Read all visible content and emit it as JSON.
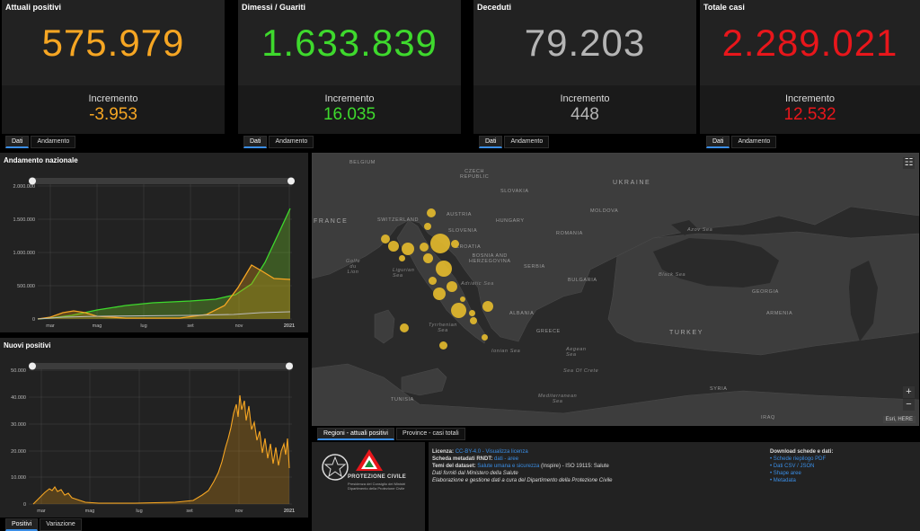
{
  "kpis": [
    {
      "title": "Attuali positivi",
      "value": "575.979",
      "increment_label": "Incremento",
      "increment": "-3.953",
      "color": "#f6a623"
    },
    {
      "title": "Dimessi / Guariti",
      "value": "1.633.839",
      "increment_label": "Incremento",
      "increment": "16.035",
      "color": "#3ed92d"
    },
    {
      "title": "Deceduti",
      "value": "79.203",
      "increment_label": "Incremento",
      "increment": "448",
      "color": "#b5b5b5"
    },
    {
      "title": "Totale casi",
      "value": "2.289.021",
      "increment_label": "Incremento",
      "increment": "12.532",
      "color": "#e8161b"
    }
  ],
  "kpi_tabs": {
    "dati": "Dati",
    "andamento": "Andamento"
  },
  "chart_national": {
    "title": "Andamento nazionale",
    "y_ticks": [
      "2.000.000",
      "1.500.000",
      "1.000.000",
      "500.000",
      "0"
    ],
    "x_ticks": [
      "mar",
      "mag",
      "lug",
      "set",
      "nov",
      "2021"
    ]
  },
  "chart_new": {
    "title": "Nuovi positivi",
    "y_ticks": [
      "50.000",
      "40.000",
      "30.000",
      "20.000",
      "10.000",
      "0"
    ],
    "x_ticks": [
      "mar",
      "mag",
      "lug",
      "set",
      "nov",
      "2021"
    ]
  },
  "chart_tabs": {
    "positivi": "Positivi",
    "variazione": "Variazione"
  },
  "map": {
    "labels": {
      "belgium": "BELGIUM",
      "czech": "CZECH\nREPUBLIC",
      "slovakia": "SLOVAKIA",
      "ukraine": "UKRAINE",
      "france": "FRANCE",
      "switzerland": "SWITZERLAND",
      "austria": "AUSTRIA",
      "hungary": "HUNGARY",
      "moldova": "MOLDOVA",
      "slovenia": "SLOVENIA",
      "croatia": "CROATIA",
      "romania": "ROMANIA",
      "bosnia": "BOSNIA AND\nHERZEGOVINA",
      "serbia": "SERBIA",
      "bulgaria": "BULGARIA",
      "albania": "ALBANIA",
      "greece": "GREECE",
      "turkey": "TURKEY",
      "georgia": "GEORGIA",
      "armenia": "ARMENIA",
      "syria": "SYRIA",
      "iraq": "IRAQ",
      "tunisia": "TUNISIA",
      "azov": "Azov Sea",
      "black": "Black Sea",
      "ligurian": "Ligurian\nSea",
      "adriatic": "Adriatic Sea",
      "tyrrhenian": "Tyrrhenian\nSea",
      "ionian": "Ionian Sea",
      "aegean": "Aegean\nSea",
      "crete": "Sea Of Crete",
      "med": "Mediterranean\nSea",
      "lion": "Golfe\ndu\nLion"
    },
    "tabs": {
      "regioni": "Regioni - attuali positivi",
      "province": "Province - casi totali"
    },
    "attribution": "Esri, HERE",
    "zoom_in": "+",
    "zoom_out": "−"
  },
  "footer": {
    "logo_text": "PROTEZIONE CIVILE",
    "logo_sub": "Presidenza del Consiglio dei Ministri\nDipartimento della Protezione Civile",
    "licenza_label": "Licenza:",
    "licenza_value": "CC-BY-4.0 - Visualizza licenza",
    "scheda_label": "Scheda metadati RNDT:",
    "scheda_value": "dati - aree",
    "temi_label": "Temi del dataset:",
    "temi_value": "Salute umana e sicurezza",
    "temi_rest": "(Inspire) - ISO 19115: Salute",
    "fonti": "Dati forniti dal Ministero della Salute",
    "elab": "Elaborazione e gestione dati a cura del Dipartimento della Protezione Civile",
    "download_title": "Download schede e dati:",
    "downloads": [
      "Schede riepilogo PDF",
      "Dati CSV / JSON",
      "Shape aree",
      "Metadata"
    ]
  }
}
